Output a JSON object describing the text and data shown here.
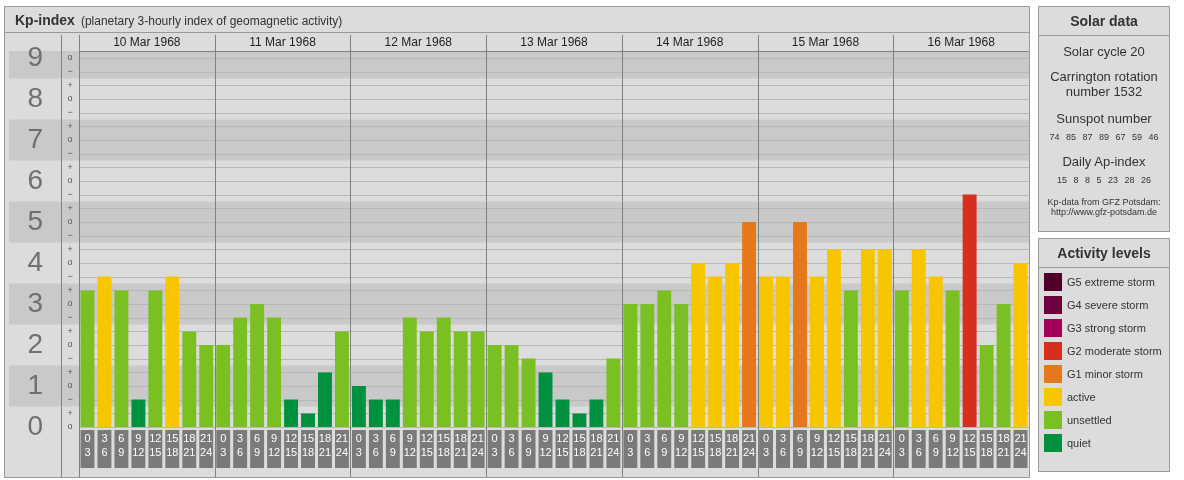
{
  "chart_data": [
    {
      "type": "bar",
      "title": "Kp-index",
      "subtitle": "(planetary 3-hourly index of geomagnetic activity)",
      "categories": [
        "0\n3",
        "3\n6",
        "6\n9",
        "9\n12",
        "12\n15",
        "15\n18",
        "18\n21",
        "21\n24",
        "0\n3",
        "3\n6",
        "6\n9",
        "9\n12",
        "12\n15",
        "15\n18",
        "18\n21",
        "21\n24",
        "0\n3",
        "3\n6",
        "6\n9",
        "9\n12",
        "12\n15",
        "15\n18",
        "18\n21",
        "21\n24",
        "0\n3",
        "3\n6",
        "6\n9",
        "9\n12",
        "12\n15",
        "15\n18",
        "18\n21",
        "21\n24",
        "0\n3",
        "3\n6",
        "6\n9",
        "9\n12",
        "12\n15",
        "15\n18",
        "18\n21",
        "21\n24",
        "0\n3",
        "3\n6",
        "6\n9",
        "9\n12",
        "12\n15",
        "15\n18",
        "18\n21",
        "21\n24",
        "0\n3",
        "3\n6",
        "6\n9",
        "9\n12",
        "12\n15",
        "15\n18",
        "18\n21",
        "21\n24"
      ],
      "stacked": true,
      "series": [
        {
          "name": "G5 extreme storm",
          "color": "#50002a",
          "values": [
            null,
            null,
            null,
            null,
            null,
            null,
            null,
            null,
            null,
            null,
            null,
            null,
            null,
            null,
            null,
            null,
            null,
            null,
            null,
            null,
            null,
            null,
            null,
            null,
            null,
            null,
            null,
            null,
            null,
            null,
            null,
            null,
            null,
            null,
            null,
            null,
            null,
            null,
            null,
            null,
            null,
            null,
            null,
            null,
            null,
            null,
            null,
            null,
            null,
            null,
            null,
            null,
            null,
            null,
            null,
            null
          ]
        },
        {
          "name": "G4 severe storm",
          "color": "#6e0040",
          "values": [
            null,
            null,
            null,
            null,
            null,
            null,
            null,
            null,
            null,
            null,
            null,
            null,
            null,
            null,
            null,
            null,
            null,
            null,
            null,
            null,
            null,
            null,
            null,
            null,
            null,
            null,
            null,
            null,
            null,
            null,
            null,
            null,
            null,
            null,
            null,
            null,
            null,
            null,
            null,
            null,
            null,
            null,
            null,
            null,
            null,
            null,
            null,
            null,
            null,
            null,
            null,
            null,
            null,
            null,
            null,
            null
          ]
        },
        {
          "name": "G3 strong storm",
          "color": "#a3005a",
          "values": [
            null,
            null,
            null,
            null,
            null,
            null,
            null,
            null,
            null,
            null,
            null,
            null,
            null,
            null,
            null,
            null,
            null,
            null,
            null,
            null,
            null,
            null,
            null,
            null,
            null,
            null,
            null,
            null,
            null,
            null,
            null,
            null,
            null,
            null,
            null,
            null,
            null,
            null,
            null,
            null,
            null,
            null,
            null,
            null,
            null,
            null,
            null,
            null,
            null,
            null,
            null,
            null,
            null,
            null,
            null,
            null
          ]
        },
        {
          "name": "G2 moderate storm",
          "color": "#d82e1d",
          "values": [
            null,
            null,
            null,
            null,
            null,
            null,
            null,
            null,
            null,
            null,
            null,
            null,
            null,
            null,
            null,
            null,
            null,
            null,
            null,
            null,
            null,
            null,
            null,
            null,
            null,
            null,
            null,
            null,
            null,
            null,
            null,
            null,
            null,
            null,
            null,
            null,
            null,
            null,
            null,
            null,
            null,
            null,
            null,
            null,
            null,
            null,
            null,
            null,
            null,
            null,
            null,
            null,
            5.67,
            null,
            null,
            null
          ]
        },
        {
          "name": "G1 minor storm",
          "color": "#e57818",
          "values": [
            null,
            null,
            null,
            null,
            null,
            null,
            null,
            null,
            null,
            null,
            null,
            null,
            null,
            null,
            null,
            null,
            null,
            null,
            null,
            null,
            null,
            null,
            null,
            null,
            null,
            null,
            null,
            null,
            null,
            null,
            null,
            null,
            null,
            null,
            null,
            null,
            null,
            null,
            null,
            5,
            null,
            null,
            5,
            null,
            null,
            null,
            null,
            null,
            null,
            null,
            null,
            null,
            null,
            null,
            null,
            null
          ]
        },
        {
          "name": "active",
          "color": "#f8c600",
          "values": [
            null,
            3.67,
            null,
            null,
            null,
            3.67,
            null,
            null,
            null,
            null,
            null,
            null,
            null,
            null,
            null,
            null,
            null,
            null,
            null,
            null,
            null,
            null,
            null,
            null,
            null,
            null,
            null,
            null,
            null,
            null,
            null,
            null,
            null,
            null,
            null,
            null,
            4,
            3.67,
            4,
            null,
            3.67,
            3.67,
            null,
            3.67,
            4.33,
            null,
            4.33,
            4.33,
            null,
            4.33,
            3.67,
            null,
            null,
            null,
            null,
            4
          ]
        },
        {
          "name": "unsettled",
          "color": "#7ac023",
          "values": [
            3.33,
            null,
            3.33,
            null,
            3.33,
            null,
            2.33,
            2,
            2,
            2.67,
            3,
            2.67,
            null,
            null,
            null,
            2.33,
            null,
            null,
            null,
            2.67,
            2.33,
            2.67,
            2.33,
            2.33,
            2,
            2,
            1.67,
            null,
            null,
            null,
            null,
            1.67,
            3,
            3,
            3.33,
            3,
            null,
            null,
            null,
            null,
            null,
            null,
            null,
            null,
            null,
            3.33,
            null,
            null,
            3.33,
            null,
            null,
            3.33,
            null,
            2,
            3,
            null
          ]
        },
        {
          "name": "quiet",
          "color": "#00913f",
          "values": [
            null,
            null,
            null,
            0.67,
            null,
            null,
            null,
            null,
            null,
            null,
            null,
            null,
            0.67,
            0.33,
            1.33,
            null,
            1,
            0.67,
            0.67,
            null,
            null,
            null,
            null,
            null,
            null,
            null,
            null,
            1.33,
            0.67,
            0.33,
            0.67,
            null,
            null,
            null,
            null,
            null,
            null,
            null,
            null,
            null,
            null,
            null,
            null,
            null,
            null,
            null,
            null,
            null,
            null,
            null,
            null,
            null,
            null,
            null,
            null,
            null
          ]
        }
      ],
      "ylim": [
        0,
        9.17
      ],
      "yticks": [
        0,
        {
          "value": 0.33,
          "label": null
        },
        {
          "value": 0.67,
          "label": null
        },
        1,
        {
          "value": 1.33,
          "label": null
        },
        {
          "value": 1.67,
          "label": null
        },
        2,
        {
          "value": 2.33,
          "label": null
        },
        {
          "value": 2.67,
          "label": null
        },
        3,
        {
          "value": 3.33,
          "label": null
        },
        {
          "value": 3.67,
          "label": null
        },
        4,
        {
          "value": 4.33,
          "label": null
        },
        {
          "value": 4.67,
          "label": null
        },
        5,
        {
          "value": 5.33,
          "label": null
        },
        {
          "value": 5.67,
          "label": null
        },
        6,
        {
          "value": 6.33,
          "label": null
        },
        {
          "value": 6.67,
          "label": null
        },
        7,
        {
          "value": 7.33,
          "label": null
        },
        {
          "value": 7.67,
          "label": null
        },
        8,
        {
          "value": 8.33,
          "label": null
        },
        {
          "value": 8.67,
          "label": null
        },
        9
      ],
      "grid": "y",
      "legend": "right",
      "legend_title": "Activity levels",
      "bands": [
        {
          "axis": "y",
          "from": 0.5,
          "to": 1.5,
          "color": "#c9c9c9"
        },
        {
          "axis": "y",
          "from": 2.5,
          "to": 3.5,
          "color": "#c9c9c9"
        },
        {
          "axis": "y",
          "from": 4.5,
          "to": 5.5,
          "color": "#c9c9c9"
        },
        {
          "axis": "y",
          "from": 6.5,
          "to": 7.5,
          "color": "#c9c9c9"
        },
        {
          "axis": "y",
          "from": 8.5,
          "to": 9.17,
          "color": "#c9c9c9"
        }
      ],
      "annotations": [
        "10 Mar 1968",
        "11 Mar 1968",
        "12 Mar 1968",
        "13 Mar 1968",
        "14 Mar 1968",
        "15 Mar 1968",
        "16 Mar 1968",
        "o",
        "+",
        "−",
        "o",
        "+",
        "−",
        "o",
        "+",
        "−",
        "o",
        "+",
        "−",
        "o",
        "+",
        "−",
        "o",
        "+",
        "−",
        "o",
        "+",
        "−",
        "o",
        "+",
        "−",
        "o",
        "+",
        "−",
        "o"
      ]
    },
    {
      "type": "other",
      "title": "Solar data",
      "annotations": [
        "Solar cycle 20",
        "Carrington rotation number 1532",
        "Sunspot number",
        "74 85 87 89 67 59 46",
        "Daily Ap-index",
        "15 8 8 5 23 28 26",
        "Kp-data from GFZ Potsdam:",
        "http://www.gfz-potsdam.de"
      ]
    }
  ]
}
